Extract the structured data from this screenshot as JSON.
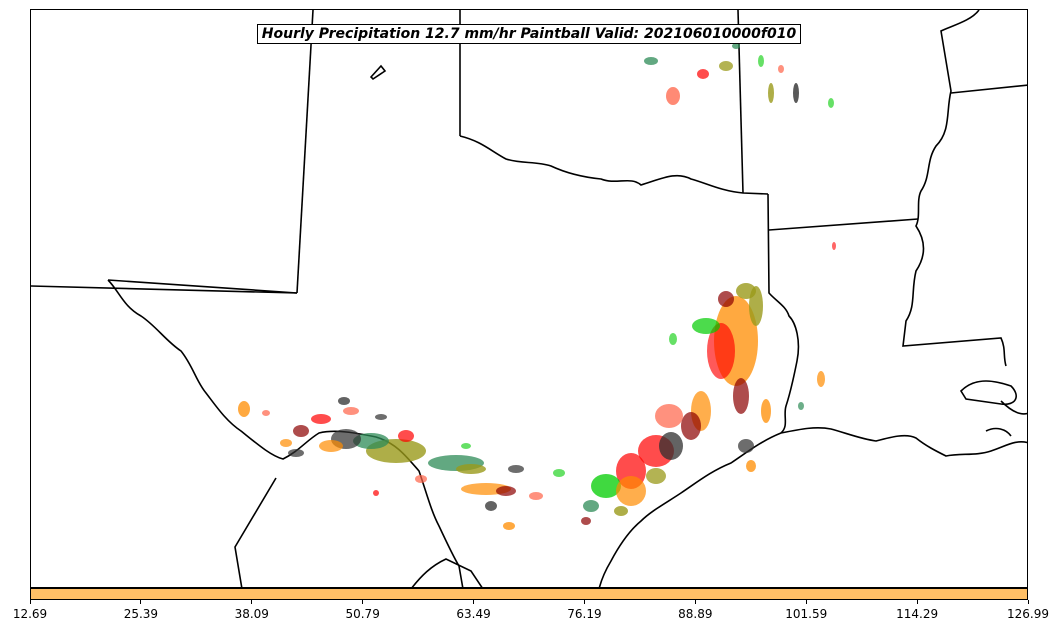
{
  "title": "Hourly Precipitation 12.7 mm/hr Paintball Valid: 202106010000f010",
  "colorbar": {
    "fill_color": "#ffbf66",
    "ticks": [
      "12.69",
      "25.39",
      "38.09",
      "50.79",
      "63.49",
      "76.19",
      "88.89",
      "101.59",
      "114.29",
      "126.99"
    ]
  },
  "paintball_colors": [
    "#ff0000",
    "#ff8c00",
    "#00cc00",
    "#8b0000",
    "#9a9a1a",
    "#2f2f2f",
    "#ff6347",
    "#2e8b57"
  ]
}
